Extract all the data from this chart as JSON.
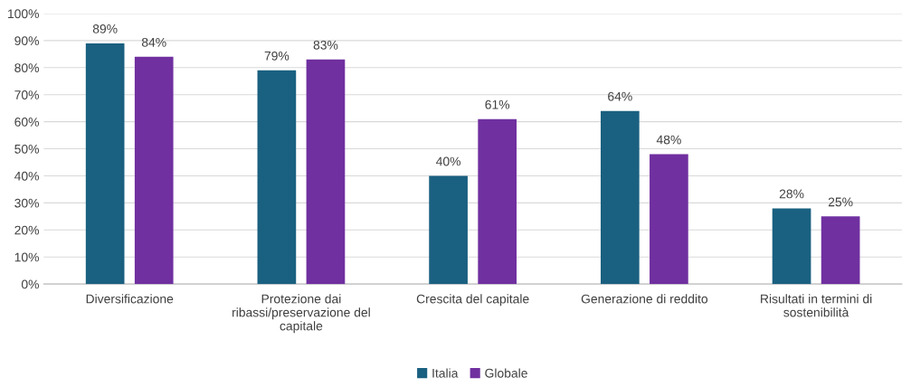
{
  "chart_data": {
    "type": "bar",
    "categories": [
      "Diversificazione",
      "Protezione dai\nribassi/preservazione del\ncapitale",
      "Crescita del capitale",
      "Generazione di reddito",
      "Risultati in termini di\nsostenibilità"
    ],
    "series": [
      {
        "name": "Italia",
        "color": "#1a6080",
        "values": [
          89,
          79,
          40,
          64,
          28
        ],
        "value_labels": [
          "89%",
          "79%",
          "40%",
          "64%",
          "28%"
        ]
      },
      {
        "name": "Globale",
        "color": "#7030a0",
        "values": [
          84,
          83,
          61,
          48,
          25
        ],
        "value_labels": [
          "84%",
          "83%",
          "61%",
          "48%",
          "25%"
        ]
      }
    ],
    "ylim": [
      0,
      100
    ],
    "yticks": [
      {
        "value": 0,
        "label": "0%"
      },
      {
        "value": 10,
        "label": "10%"
      },
      {
        "value": 20,
        "label": "20%"
      },
      {
        "value": 30,
        "label": "30%"
      },
      {
        "value": 40,
        "label": "40%"
      },
      {
        "value": 50,
        "label": "50%"
      },
      {
        "value": 60,
        "label": "60%"
      },
      {
        "value": 70,
        "label": "70%"
      },
      {
        "value": 80,
        "label": "80%"
      },
      {
        "value": 90,
        "label": "90%"
      },
      {
        "value": 100,
        "label": "100%"
      }
    ],
    "grid": "y",
    "legend": "bottom"
  }
}
